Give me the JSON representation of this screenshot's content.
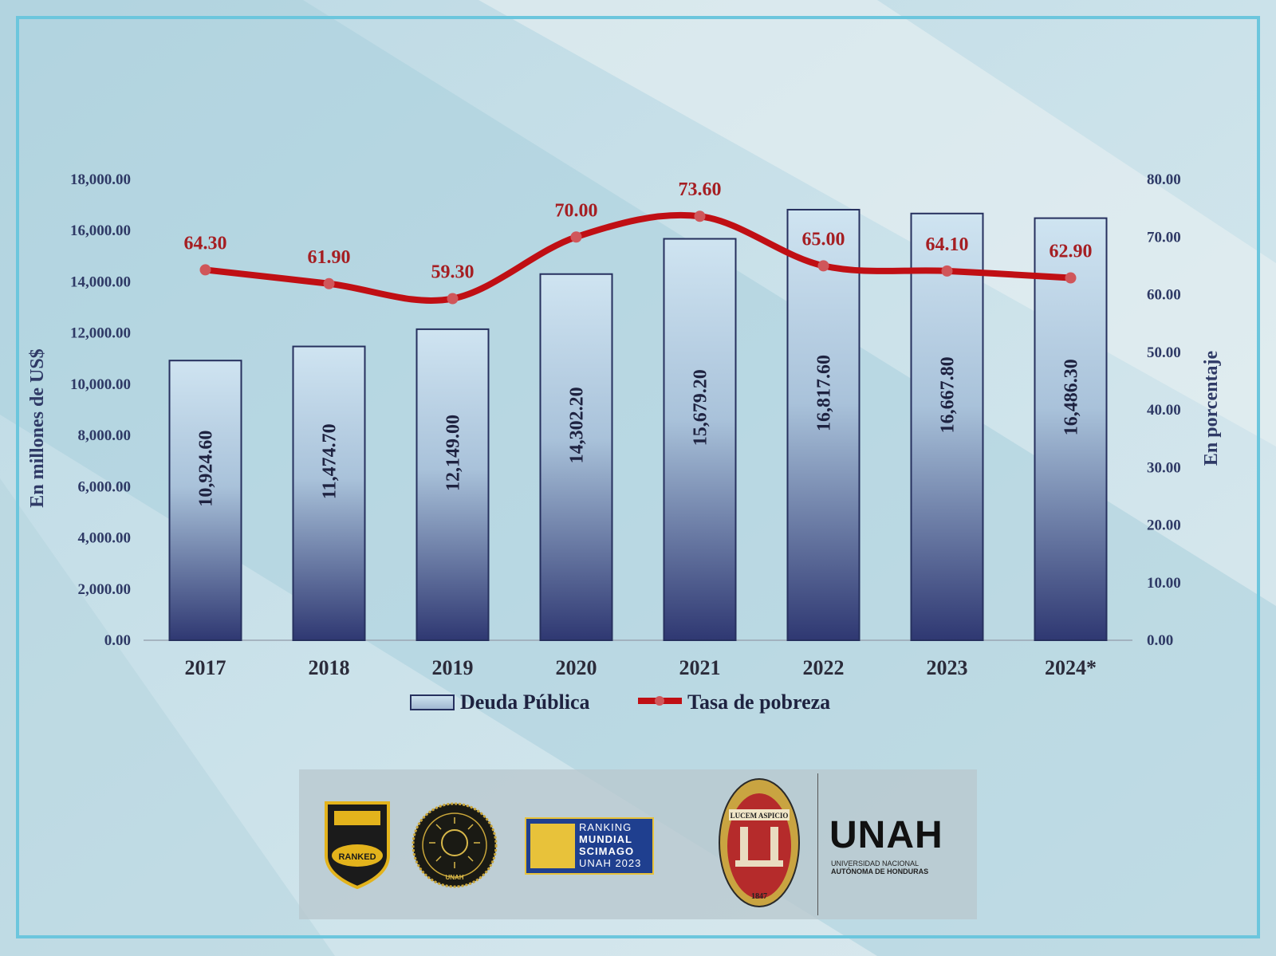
{
  "chart_data": {
    "type": "bar",
    "categories": [
      "2017",
      "2018",
      "2019",
      "2020",
      "2021",
      "2022",
      "2023",
      "2024*"
    ],
    "series": [
      {
        "name": "Deuda Pública",
        "type": "bar",
        "axis": "left",
        "values": [
          10924.6,
          11474.7,
          12149.0,
          14302.2,
          15679.2,
          16817.6,
          16667.8,
          16486.3
        ],
        "labels": [
          "10,924.60",
          "11,474.70",
          "12,149.00",
          "14,302.20",
          "15,679.20",
          "16,817.60",
          "16,667.80",
          "16,486.30"
        ]
      },
      {
        "name": "Tasa de pobreza",
        "type": "line",
        "axis": "right",
        "values": [
          64.3,
          61.9,
          59.3,
          70.0,
          73.6,
          65.0,
          64.1,
          62.9
        ],
        "labels": [
          "64.30",
          "61.90",
          "59.30",
          "70.00",
          "73.60",
          "65.00",
          "64.10",
          "62.90"
        ]
      }
    ],
    "ylabel": "En millones de US$",
    "y2label": "En porcentaje",
    "ylim": [
      0,
      18000
    ],
    "y2lim": [
      0,
      80
    ],
    "yticks": [
      "0.00",
      "2,000.00",
      "4,000.00",
      "6,000.00",
      "8,000.00",
      "10,000.00",
      "12,000.00",
      "14,000.00",
      "16,000.00",
      "18,000.00"
    ],
    "y2ticks": [
      "0.00",
      "10.00",
      "20.00",
      "30.00",
      "40.00",
      "50.00",
      "60.00",
      "70.00",
      "80.00"
    ],
    "legend_position": "bottom",
    "grid": false,
    "colors": {
      "bar_top": "#cfe4f1",
      "bar_bottom": "#2f3872",
      "bar_border": "#26305e",
      "line": "#c00f14",
      "text": "#2f3a66"
    }
  },
  "logos": {
    "badge_text": "RANKED",
    "seal_text": "UNAH",
    "scimago_lines": [
      "RANKING",
      "MUNDIAL",
      "SCIMAGO",
      "UNAH 2023"
    ],
    "crest_motto": "LUCEM ASPICIO",
    "crest_year": "1847",
    "brand": "UNAH",
    "brand_sub_1": "UNIVERSIDAD NACIONAL",
    "brand_sub_2": "AUTÓNOMA DE HONDURAS"
  }
}
